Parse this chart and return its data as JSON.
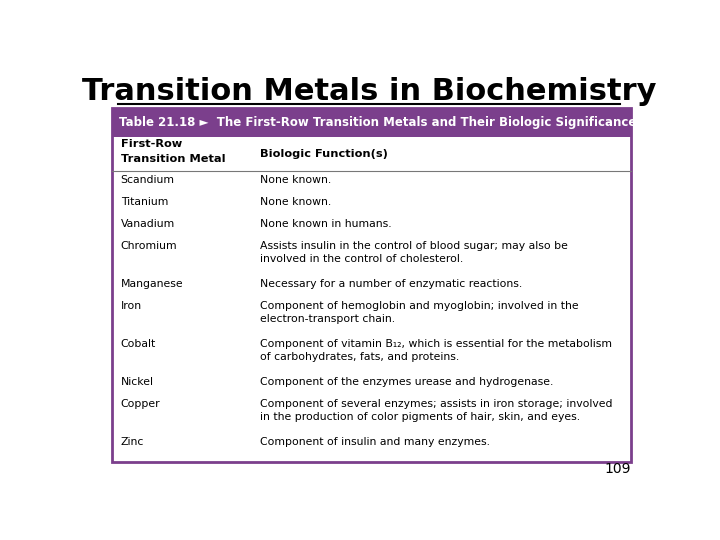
{
  "title": "Transition Metals in Biochemistry",
  "page_number": "109",
  "table_title": "Table 21.18 ►  The First-Row Transition Metals and Their Biologic Significance",
  "header_bg": "#7B3F8C",
  "header_text_color": "#FFFFFF",
  "table_bg": "#FFFFFF",
  "border_color": "#7B3F8C",
  "col1_label_line1": "First-Row",
  "col1_label_line2": "Transition Metal",
  "col2_label": "Biologic Function(s)",
  "rows": [
    [
      "Scandium",
      "None known."
    ],
    [
      "Titanium",
      "None known."
    ],
    [
      "Vanadium",
      "None known in humans."
    ],
    [
      "Chromium",
      "Assists insulin in the control of blood sugar; may also be\ninvolved in the control of cholesterol."
    ],
    [
      "Manganese",
      "Necessary for a number of enzymatic reactions."
    ],
    [
      "Iron",
      "Component of hemoglobin and myoglobin; involved in the\nelectron-transport chain."
    ],
    [
      "Cobalt",
      "Component of vitamin B₁₂, which is essential for the metabolism\nof carbohydrates, fats, and proteins."
    ],
    [
      "Nickel",
      "Component of the enzymes urease and hydrogenase."
    ],
    [
      "Copper",
      "Component of several enzymes; assists in iron storage; involved\nin the production of color pigments of hair, skin, and eyes."
    ],
    [
      "Zinc",
      "Component of insulin and many enzymes."
    ]
  ],
  "line_counts": [
    1,
    1,
    1,
    2,
    1,
    2,
    2,
    1,
    2,
    1
  ],
  "background_color": "#FFFFFF",
  "title_fontsize": 22,
  "table_title_fontsize": 8.5,
  "body_fontsize": 7.8,
  "header_fontsize": 8.2,
  "page_num_fontsize": 10
}
